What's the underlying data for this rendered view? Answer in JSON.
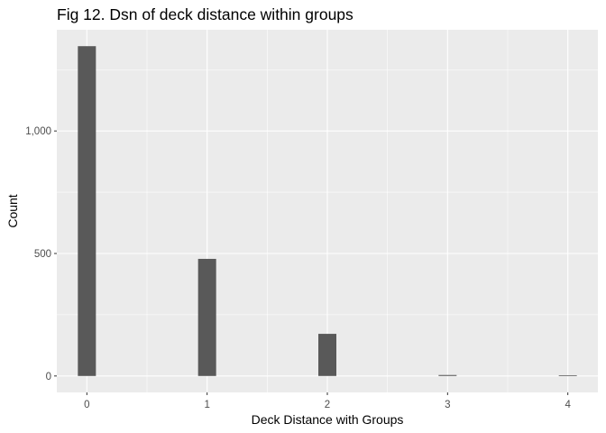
{
  "chart_data": {
    "type": "bar",
    "title": "Fig 12. Dsn of deck distance within groups",
    "xlabel": "Deck Distance with Groups",
    "ylabel": "Count",
    "x": [
      0,
      1,
      2,
      3,
      4
    ],
    "values": [
      1346,
      478,
      172,
      4,
      3
    ],
    "xlim": [
      -0.25,
      4.25
    ],
    "ylim": [
      -67,
      1413
    ],
    "x_ticks": [
      0,
      1,
      2,
      3,
      4
    ],
    "y_ticks": [
      0,
      500,
      1000
    ],
    "y_tick_labels": [
      "0",
      "500",
      "1,000"
    ],
    "x_minor_ticks": [
      0.5,
      1.5,
      2.5,
      3.5
    ],
    "y_minor_ticks": [
      250,
      750,
      1250
    ],
    "grid": true,
    "legend": "none",
    "colors": {
      "panel_background": "#ebebeb",
      "grid_major": "#ffffff",
      "bar_fill": "#595959",
      "tick_text": "#4d4d4d"
    }
  }
}
